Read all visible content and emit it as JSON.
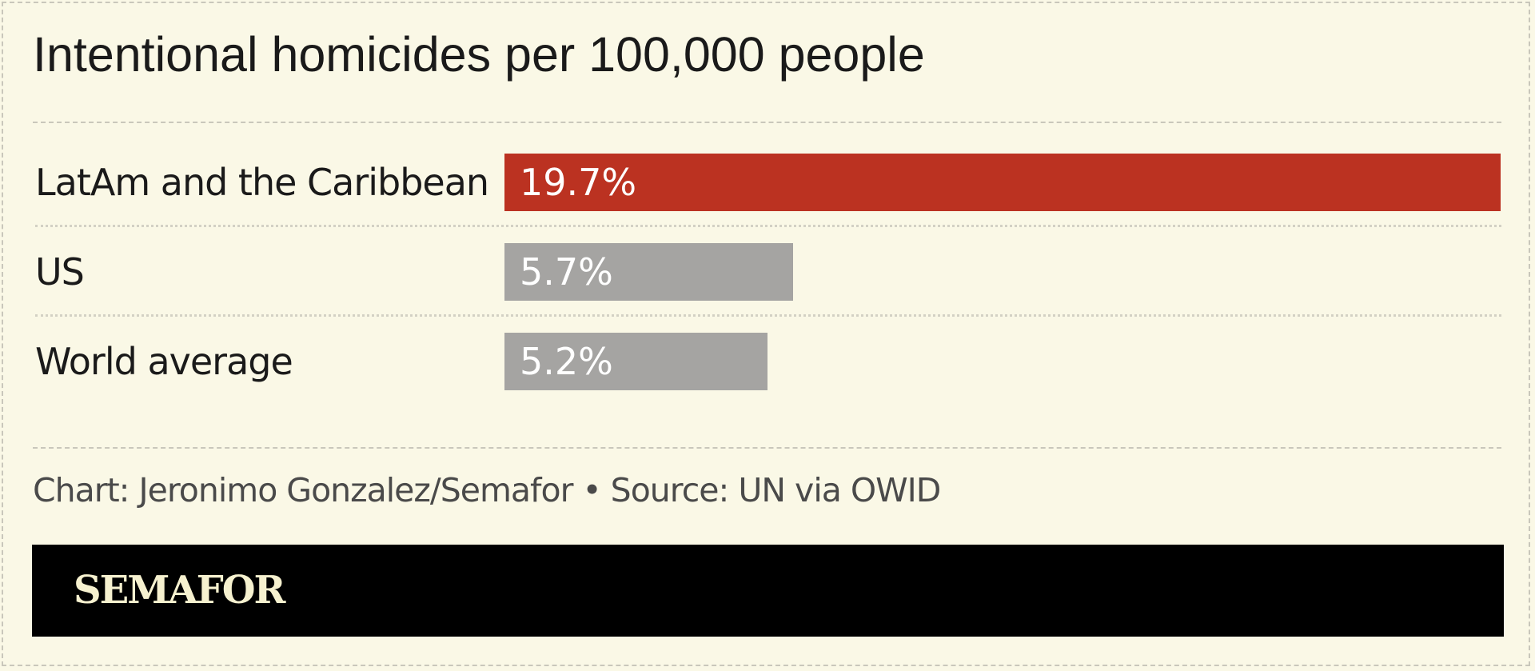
{
  "chart_data": {
    "type": "bar",
    "orientation": "horizontal",
    "title": "Intentional homicides per 100,000 people",
    "categories": [
      "LatAm and the Caribbean",
      "US",
      "World average"
    ],
    "values": [
      19.7,
      5.7,
      5.2
    ],
    "value_labels": [
      "19.7%",
      "5.7%",
      "5.2%"
    ],
    "bar_colors": [
      "#bb3221",
      "#a5a4a2",
      "#a5a4a2"
    ],
    "xlim": [
      0,
      19.7
    ],
    "grid": false,
    "legend": "none"
  },
  "caption": "Chart: Jeronimo Gonzalez/Semafor • Source: UN via OWID",
  "brand": "SEMAFOR",
  "colors": {
    "background": "#faf8e6",
    "highlight": "#bb3221",
    "neutral": "#a5a4a2",
    "brand_bar": "#000000",
    "brand_text": "#f6f1cf"
  }
}
